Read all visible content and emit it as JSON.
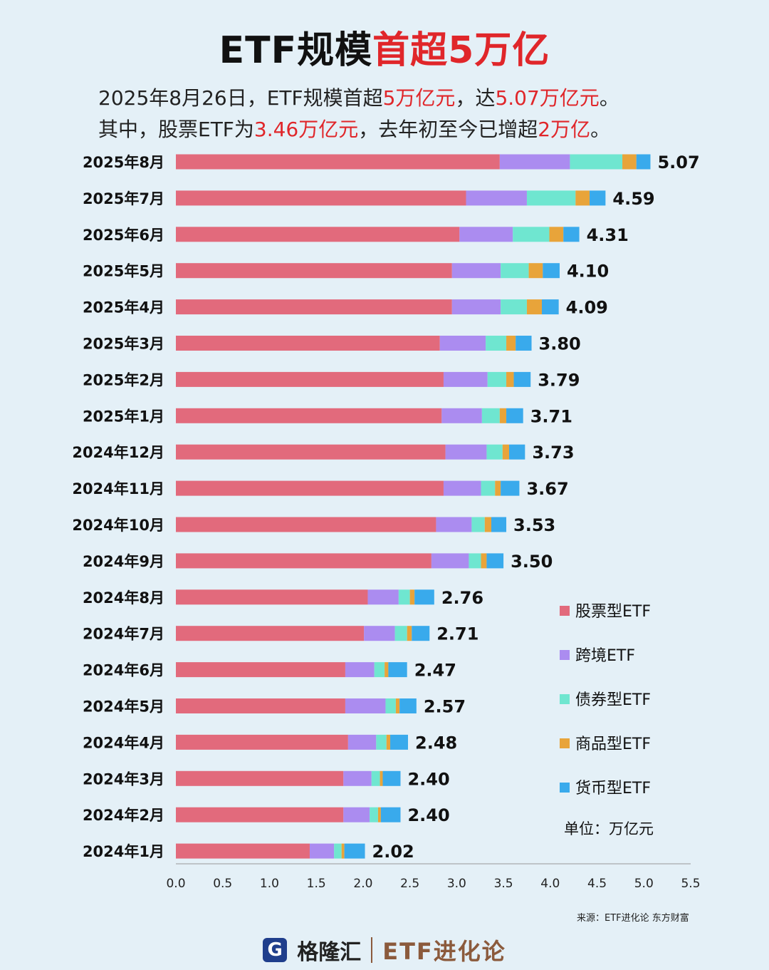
{
  "header": {
    "title_black": "ETF规模",
    "title_red": "首超5万亿",
    "line1": [
      "2025年8月26日，ETF规模首超",
      "5万亿元",
      "，达",
      "5.07万亿元",
      "。"
    ],
    "line2": [
      "其中，股票ETF为",
      "3.46万亿元",
      "，去年初至今已增超",
      "2万亿",
      "。"
    ]
  },
  "legend_unit": "单位：万亿元",
  "source": "来源：ETF进化论 东方财富",
  "footer": {
    "logo_glyph": "G",
    "brand": "格隆汇",
    "etf": "ETF进化论"
  },
  "colors": {
    "股票型ETF": "#e26a7c",
    "跨境ETF": "#ab8cf0",
    "债券型ETF": "#6fe6d0",
    "商品型ETF": "#e8a43a",
    "货币型ETF": "#39aaec"
  },
  "chart_data": {
    "type": "bar",
    "orientation": "horizontal",
    "stacked": true,
    "categories": [
      "2025年8月",
      "2025年7月",
      "2025年6月",
      "2025年5月",
      "2025年4月",
      "2025年3月",
      "2025年2月",
      "2025年1月",
      "2024年12月",
      "2024年11月",
      "2024年10月",
      "2024年9月",
      "2024年8月",
      "2024年7月",
      "2024年6月",
      "2024年5月",
      "2024年4月",
      "2024年3月",
      "2024年2月",
      "2024年1月"
    ],
    "totals": [
      5.07,
      4.59,
      4.31,
      4.1,
      4.09,
      3.8,
      3.79,
      3.71,
      3.73,
      3.67,
      3.53,
      3.5,
      2.76,
      2.71,
      2.47,
      2.57,
      2.48,
      2.4,
      2.4,
      2.02
    ],
    "total_labels": [
      "5.07",
      "4.59",
      "4.31",
      "4.10",
      "4.09",
      "3.80",
      "3.79",
      "3.71",
      "3.73",
      "3.67",
      "3.53",
      "3.50",
      "2.76",
      "2.71",
      "2.47",
      "2.57",
      "2.48",
      "2.40",
      "2.40",
      "2.02"
    ],
    "series": [
      {
        "name": "股票型ETF",
        "values": [
          3.46,
          3.1,
          3.03,
          2.95,
          2.95,
          2.82,
          2.86,
          2.84,
          2.88,
          2.86,
          2.78,
          2.73,
          2.05,
          2.01,
          1.81,
          1.81,
          1.84,
          1.79,
          1.79,
          1.43
        ]
      },
      {
        "name": "跨境ETF",
        "values": [
          0.75,
          0.65,
          0.57,
          0.52,
          0.52,
          0.49,
          0.47,
          0.43,
          0.44,
          0.4,
          0.38,
          0.4,
          0.33,
          0.33,
          0.31,
          0.43,
          0.3,
          0.3,
          0.28,
          0.26
        ]
      },
      {
        "name": "债券型ETF",
        "values": [
          0.56,
          0.52,
          0.39,
          0.3,
          0.28,
          0.22,
          0.2,
          0.19,
          0.17,
          0.15,
          0.14,
          0.13,
          0.12,
          0.13,
          0.11,
          0.11,
          0.11,
          0.09,
          0.09,
          0.08
        ]
      },
      {
        "name": "商品型ETF",
        "values": [
          0.15,
          0.15,
          0.15,
          0.15,
          0.16,
          0.1,
          0.08,
          0.07,
          0.07,
          0.06,
          0.07,
          0.06,
          0.05,
          0.05,
          0.04,
          0.04,
          0.04,
          0.03,
          0.03,
          0.03
        ]
      },
      {
        "name": "货币型ETF",
        "values": [
          0.15,
          0.17,
          0.17,
          0.18,
          0.18,
          0.17,
          0.18,
          0.18,
          0.17,
          0.2,
          0.16,
          0.18,
          0.21,
          0.19,
          0.2,
          0.18,
          0.19,
          0.19,
          0.21,
          0.22
        ]
      }
    ],
    "x_ticks": [
      "0.0",
      "0.5",
      "1.0",
      "1.5",
      "2.0",
      "2.5",
      "3.0",
      "3.5",
      "4.0",
      "4.5",
      "5.0",
      "5.5"
    ],
    "xlim": [
      0,
      5.5
    ],
    "legend_position": "right"
  }
}
